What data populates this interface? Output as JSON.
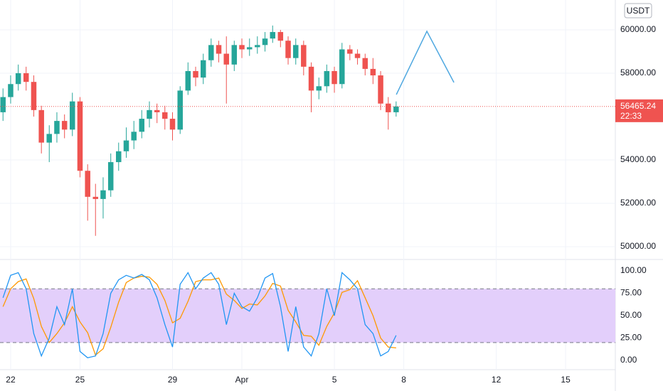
{
  "chart_data": [
    {
      "type": "candlestick",
      "currency": "USDT",
      "x": [
        21.67,
        22,
        22.33,
        22.67,
        23,
        23.33,
        23.67,
        24,
        24.33,
        24.67,
        25,
        25.33,
        25.67,
        26,
        26.33,
        26.67,
        27,
        27.33,
        27.67,
        28,
        28.33,
        28.67,
        29,
        29.33,
        29.67,
        30,
        30.33,
        30.67,
        31,
        31.33,
        31.67,
        32,
        32.33,
        32.67,
        33,
        33.33,
        33.67,
        34,
        34.33,
        34.67,
        35,
        35.33,
        35.67,
        36,
        36.33,
        36.67,
        37,
        37.33,
        37.67,
        38,
        38.33,
        38.67
      ],
      "open": [
        56200,
        56900,
        57500,
        58000,
        57600,
        56300,
        54800,
        55200,
        55800,
        55400,
        56700,
        53500,
        52300,
        52200,
        52600,
        53900,
        54400,
        54900,
        55300,
        55900,
        56300,
        56200,
        55900,
        55400,
        57200,
        58100,
        57800,
        58600,
        59300,
        58900,
        58400,
        59300,
        59100,
        59200,
        59300,
        59600,
        59900,
        59500,
        58700,
        59300,
        58300,
        57200,
        57400,
        58100,
        57500,
        59100,
        58900,
        58700,
        58200,
        57900,
        56600,
        56200
      ],
      "high": [
        57300,
        57900,
        58400,
        58300,
        57900,
        56500,
        55600,
        56200,
        56100,
        57100,
        56900,
        53800,
        52900,
        53200,
        54300,
        54800,
        55500,
        55800,
        56300,
        56700,
        56600,
        56500,
        56200,
        57400,
        58500,
        58300,
        58900,
        59600,
        59500,
        59700,
        59500,
        59600,
        59600,
        59700,
        59900,
        60200,
        60000,
        59700,
        59600,
        59500,
        58500,
        57800,
        58400,
        58300,
        59400,
        59300,
        59100,
        58900,
        58700,
        58100,
        56900,
        56700
      ],
      "low": [
        55800,
        56600,
        57200,
        57200,
        56000,
        54300,
        53900,
        54800,
        55000,
        55100,
        53200,
        51200,
        50500,
        51300,
        52300,
        53500,
        54100,
        54500,
        55000,
        55500,
        55700,
        55400,
        54900,
        55200,
        57000,
        57400,
        57500,
        58300,
        58500,
        56600,
        58100,
        58700,
        58800,
        58900,
        59000,
        59400,
        59200,
        58400,
        58400,
        57900,
        56200,
        56800,
        57100,
        57100,
        57300,
        58600,
        58400,
        57900,
        57500,
        56300,
        55400,
        56000
      ],
      "close": [
        56900,
        57500,
        58000,
        57600,
        56300,
        54800,
        55200,
        55800,
        55400,
        56700,
        53500,
        52300,
        52200,
        52600,
        53900,
        54400,
        54900,
        55300,
        55900,
        56300,
        56200,
        55900,
        55400,
        57200,
        58100,
        57800,
        58600,
        59300,
        58900,
        58400,
        59300,
        59100,
        59200,
        59300,
        59600,
        59900,
        59500,
        58700,
        59300,
        58300,
        57200,
        57400,
        58100,
        57500,
        59100,
        58900,
        58700,
        58200,
        57900,
        56600,
        56200,
        56465
      ],
      "up_color": "#26a69a",
      "down_color": "#ef5350",
      "xlim": [
        21.54,
        48.15
      ],
      "xticks": [
        22,
        25,
        29,
        {
          "value": 32,
          "label": "Apr"
        },
        {
          "value": 36,
          "label": "5"
        },
        {
          "value": 39,
          "label": "8"
        },
        {
          "value": 43,
          "label": "12"
        },
        {
          "value": 46,
          "label": "15"
        }
      ],
      "ylim": [
        49410,
        61377
      ],
      "yticks": [
        {
          "value": 50000,
          "label": "50000.00"
        },
        {
          "value": 52000,
          "label": "52000.00"
        },
        {
          "value": 54000,
          "label": "54000.00"
        },
        {
          "value": 58000,
          "label": "58000.00"
        },
        {
          "value": 60000,
          "label": "60000.00"
        }
      ],
      "grid": true,
      "last_price": {
        "value": 56465.24,
        "label": "56465.24"
      },
      "countdown": "22:33",
      "last_color": "#ef5350",
      "drawing": {
        "color": "#4fa8e0",
        "x": [
          38.68,
          40.0,
          41.17
        ],
        "y": [
          57016,
          59934,
          57574
        ]
      }
    },
    {
      "type": "line",
      "series": [
        {
          "color": "#ff9800",
          "values": [
            60,
            80,
            88,
            91,
            69,
            38,
            20,
            30,
            42,
            60,
            43,
            31,
            6,
            13,
            37,
            65,
            87,
            92,
            94,
            93,
            85,
            67,
            42,
            47,
            66,
            88,
            90,
            90,
            92,
            74,
            67,
            58,
            63,
            62,
            72,
            86,
            83,
            56,
            43,
            28,
            27,
            17,
            38,
            53,
            76,
            79,
            89,
            70,
            50,
            25,
            15,
            14
          ]
        },
        {
          "color": "#2196f3",
          "values": [
            70,
            95,
            98,
            80,
            30,
            5,
            25,
            60,
            40,
            80,
            10,
            3,
            5,
            30,
            75,
            90,
            95,
            92,
            96,
            90,
            70,
            40,
            15,
            85,
            98,
            80,
            92,
            98,
            85,
            40,
            75,
            60,
            55,
            70,
            92,
            97,
            60,
            10,
            60,
            15,
            5,
            30,
            80,
            50,
            98,
            90,
            80,
            40,
            30,
            5,
            10,
            28
          ]
        }
      ],
      "ylim": [
        -10.3,
        112.7
      ],
      "yticks": [
        {
          "value": 0,
          "label": "0.00"
        },
        {
          "value": 25,
          "label": "25.00"
        },
        {
          "value": 50,
          "label": "50.00"
        },
        {
          "value": 75,
          "label": "75.00"
        },
        {
          "value": 100,
          "label": "100.00"
        }
      ],
      "band": [
        20,
        80
      ],
      "band_color": "#e3cffb"
    }
  ]
}
